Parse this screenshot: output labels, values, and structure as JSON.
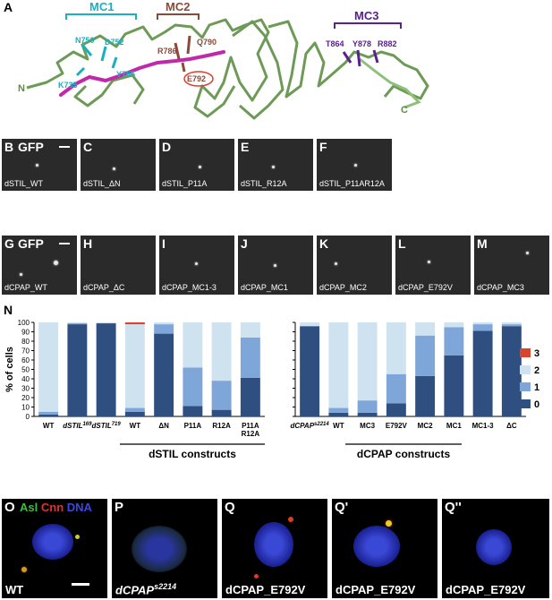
{
  "panel_a": {
    "letter": "A",
    "motifs": [
      {
        "name": "MC1",
        "color": "#1ab0c0"
      },
      {
        "name": "MC2",
        "color": "#8a4a3a"
      },
      {
        "name": "MC3",
        "color": "#5a2090"
      }
    ],
    "residues": {
      "n750": "N750",
      "d752": "D752",
      "y765": "Y765",
      "k735": "K735",
      "r786": "R786",
      "q790": "Q790",
      "e792": "E792",
      "t864": "T864",
      "y878": "Y878",
      "r882": "R882"
    },
    "n_term": "N",
    "c_term": "C"
  },
  "row_b": {
    "gfp": "GFP",
    "panels": [
      {
        "letter": "B",
        "caption": "dSTIL_WT"
      },
      {
        "letter": "C",
        "caption": "dSTIL_ΔN"
      },
      {
        "letter": "D",
        "caption": "dSTIL_P11A"
      },
      {
        "letter": "E",
        "caption": "dSTIL_R12A"
      },
      {
        "letter": "F",
        "caption": "dSTIL_P11AR12A"
      }
    ]
  },
  "row_g": {
    "gfp": "GFP",
    "panels": [
      {
        "letter": "G",
        "caption": "dCPAP_WT"
      },
      {
        "letter": "H",
        "caption": "dCPAP_ΔC"
      },
      {
        "letter": "I",
        "caption": "dCPAP_MC1-3"
      },
      {
        "letter": "J",
        "caption": "dCPAP_MC1"
      },
      {
        "letter": "K",
        "caption": "dCPAP_MC2"
      },
      {
        "letter": "L",
        "caption": "dCPAP_E792V"
      },
      {
        "letter": "M",
        "caption": "dCPAP_MC3"
      }
    ]
  },
  "panel_n": {
    "letter": "N",
    "group1_label": "dSTIL constructs",
    "group2_label": "dCPAP constructs"
  },
  "chart_data": {
    "type": "bar",
    "stacked": true,
    "ylabel": "% of cells",
    "ylim": [
      0,
      100
    ],
    "yticks": [
      0,
      10,
      20,
      30,
      40,
      50,
      60,
      70,
      80,
      90,
      100
    ],
    "legend": [
      "3",
      "2",
      "1",
      "0"
    ],
    "legend_position": "right",
    "colors": {
      "0": "#2f4f80",
      "1": "#7ea6d8",
      "2": "#cfe2f0",
      "3": "#d9442a"
    },
    "groups": [
      {
        "categories": [
          "WT",
          "dSTIL169",
          "dSTIL719",
          "WT",
          "ΔN",
          "P11A",
          "R12A",
          "P11A R12A"
        ],
        "category_display": [
          {
            "main": "WT",
            "sup": ""
          },
          {
            "main": "dSTIL",
            "sup": "169"
          },
          {
            "main": "dSTIL",
            "sup": "719"
          },
          {
            "main": "WT",
            "sup": ""
          },
          {
            "main": "ΔN",
            "sup": ""
          },
          {
            "main": "P11A",
            "sup": ""
          },
          {
            "main": "R12A",
            "sup": ""
          },
          {
            "main": "P11A\nR12A",
            "sup": ""
          }
        ],
        "series": [
          {
            "name": "0",
            "values": [
              2,
              98,
              99,
              5,
              88,
              11,
              7,
              41
            ]
          },
          {
            "name": "1",
            "values": [
              3,
              1,
              0,
              4,
              10,
              41,
              31,
              43
            ]
          },
          {
            "name": "2",
            "values": [
              95,
              1,
              1,
              89,
              2,
              48,
              62,
              16
            ]
          },
          {
            "name": "3",
            "values": [
              0,
              0,
              0,
              2,
              0,
              0,
              0,
              0
            ]
          }
        ]
      },
      {
        "categories": [
          "dCPAPs2214",
          "WT",
          "MC3",
          "E792V",
          "MC2",
          "MC1",
          "MC1-3",
          "ΔC"
        ],
        "category_display": [
          {
            "main": "dCPAP",
            "sup": "s2214"
          },
          {
            "main": "WT",
            "sup": ""
          },
          {
            "main": "MC3",
            "sup": ""
          },
          {
            "main": "E792V",
            "sup": ""
          },
          {
            "main": "MC2",
            "sup": ""
          },
          {
            "main": "MC1",
            "sup": ""
          },
          {
            "main": "MC1-3",
            "sup": ""
          },
          {
            "main": "ΔC",
            "sup": ""
          }
        ],
        "series": [
          {
            "name": "0",
            "values": [
              96,
              4,
              4,
              14,
              43,
              65,
              91,
              96
            ]
          },
          {
            "name": "1",
            "values": [
              0,
              5,
              13,
              31,
              43,
              30,
              7,
              2
            ]
          },
          {
            "name": "2",
            "values": [
              4,
              91,
              83,
              55,
              14,
              5,
              2,
              2
            ]
          },
          {
            "name": "3",
            "values": [
              0,
              0,
              0,
              0,
              0,
              0,
              0,
              0
            ]
          }
        ]
      }
    ]
  },
  "row_o": {
    "stain": {
      "asl": "Asl",
      "cnn": "Cnn",
      "dna": "DNA"
    },
    "panels": [
      {
        "letter": "O",
        "caption": "WT"
      },
      {
        "letter": "P",
        "caption_main": "dCPAP",
        "caption_sup": "s2214"
      },
      {
        "letter": "Q",
        "caption": "dCPAP_E792V"
      },
      {
        "letter": "Q'",
        "caption": "dCPAP_E792V"
      },
      {
        "letter": "Q''",
        "caption": "dCPAP_E792V"
      }
    ]
  }
}
